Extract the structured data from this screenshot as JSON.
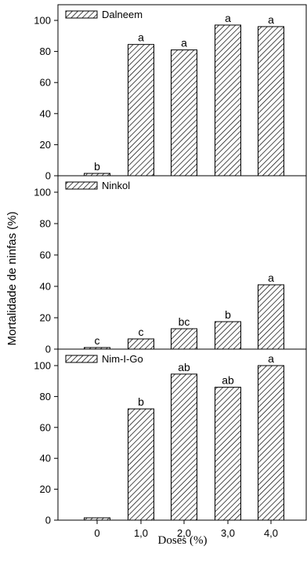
{
  "chart_data": [
    {
      "type": "bar",
      "legend": "Dalneem",
      "categories": [
        "0",
        "1,0",
        "2,0",
        "3,0",
        "4,0"
      ],
      "values": [
        1.5,
        84.5,
        81,
        97,
        96
      ],
      "letters": [
        "b",
        "a",
        "a",
        "a",
        "a"
      ],
      "ylim": [
        0,
        100
      ],
      "yticks": [
        "0",
        "20",
        "40",
        "60",
        "80",
        "100"
      ]
    },
    {
      "type": "bar",
      "legend": "Ninkol",
      "categories": [
        "0",
        "1,0",
        "2,0",
        "3,0",
        "4,0"
      ],
      "values": [
        1,
        6.5,
        13,
        17.5,
        41
      ],
      "letters": [
        "c",
        "c",
        "bc",
        "b",
        "a"
      ],
      "ylim": [
        0,
        100
      ],
      "yticks": [
        "0",
        "20",
        "40",
        "60",
        "80",
        "100"
      ]
    },
    {
      "type": "bar",
      "legend": "Nim-I-Go",
      "categories": [
        "0",
        "1,0",
        "2,0",
        "3,0",
        "4,0"
      ],
      "values": [
        1.5,
        72,
        94.5,
        86,
        100
      ],
      "letters": [
        "",
        "b",
        "ab",
        "ab",
        "a"
      ],
      "ylim": [
        0,
        100
      ],
      "yticks": [
        "0",
        "20",
        "40",
        "60",
        "80",
        "100"
      ]
    }
  ],
  "xlabel": "Doses (%)",
  "ylabel": "Mortalidade de ninfas (%)",
  "categories": [
    "0",
    "1,0",
    "2,0",
    "3,0",
    "4,0"
  ]
}
